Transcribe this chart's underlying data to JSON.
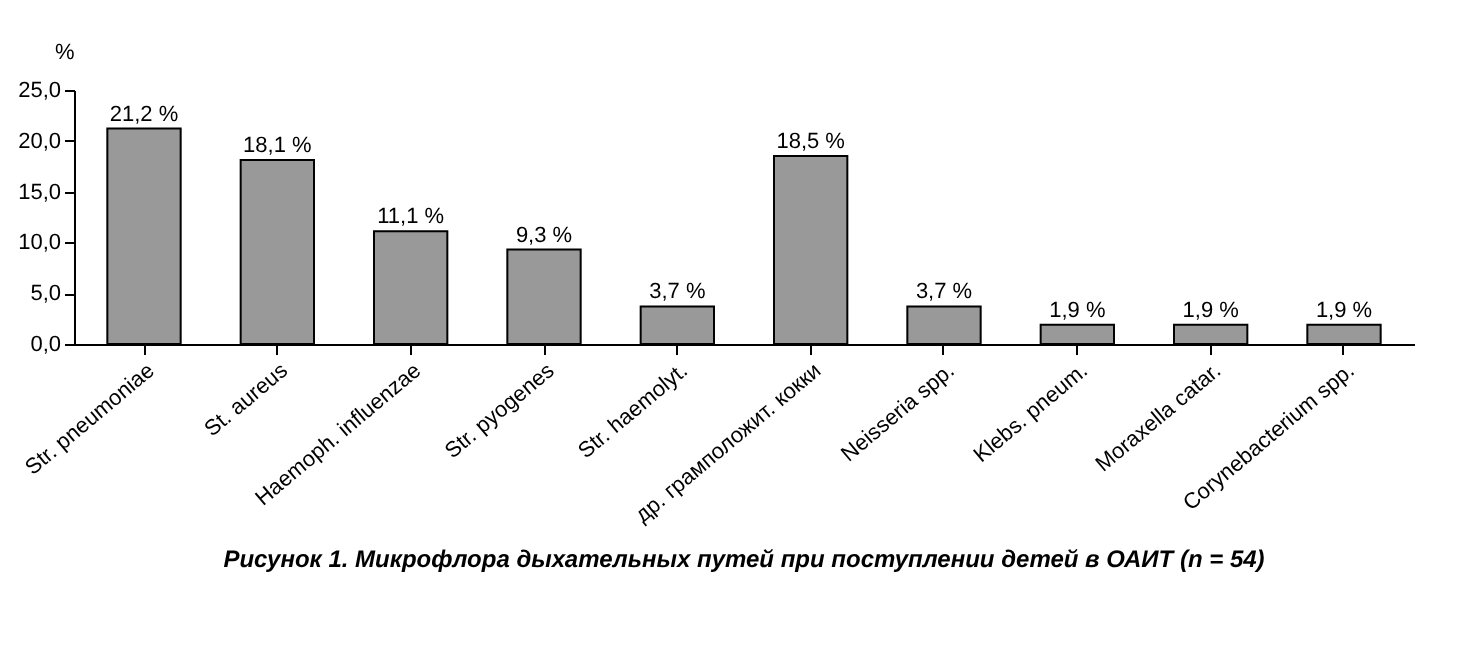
{
  "chart_data": {
    "type": "bar",
    "title": "Рисунок 1. Микрофлора дыхательных путей при поступлении детей в ОАИТ (n = 54)",
    "ylabel": "%",
    "categories": [
      "Str. pneumoniae",
      "St. aureus",
      "Haemoph. influenzae",
      "Str. pyogenes",
      "Str. haemolyt.",
      "др. грамположит. кокки",
      "Neisseria spp.",
      "Klebs. pneum.",
      "Moraxella catar.",
      "Corynebacterium spp."
    ],
    "values": [
      21.2,
      18.1,
      11.1,
      9.3,
      3.7,
      18.5,
      3.7,
      1.9,
      1.9,
      1.9
    ],
    "value_labels": [
      "21,2 %",
      "18,1 %",
      "11,1 %",
      "9,3 %",
      "3,7 %",
      "18,5 %",
      "3,7 %",
      "1,9 %",
      "1,9 %",
      "1,9 %"
    ],
    "color": "#999999",
    "ylim": [
      0,
      25
    ],
    "yticks": [
      {
        "value": 0,
        "label": "0,0"
      },
      {
        "value": 5,
        "label": "5,0"
      },
      {
        "value": 10,
        "label": "10,0"
      },
      {
        "value": 15,
        "label": "15,0"
      },
      {
        "value": 20,
        "label": "20,0"
      },
      {
        "value": 25,
        "label": "25,0"
      }
    ],
    "grid": false
  }
}
